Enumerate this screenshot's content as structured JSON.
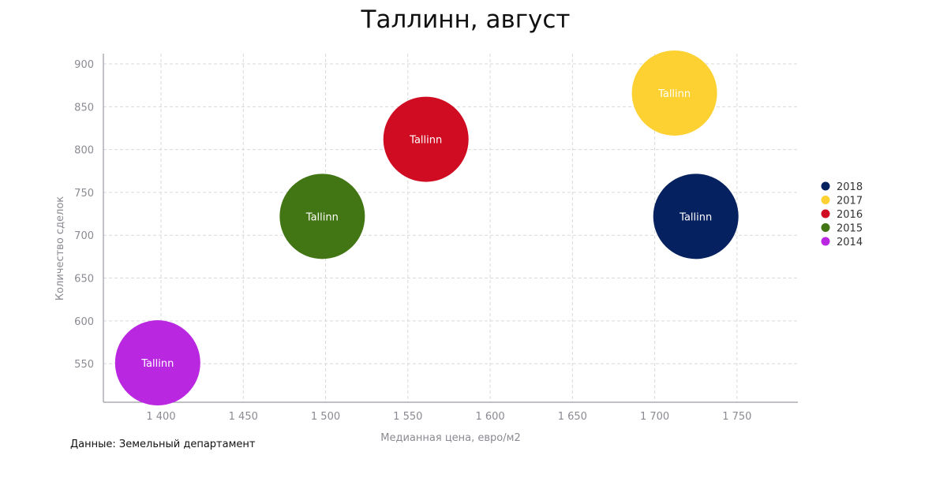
{
  "chart_data": {
    "type": "bubble",
    "title": "Таллинн, август",
    "xlabel": "Медианная цена, евро/м2",
    "ylabel": "Количество сделок",
    "xlim": [
      1365,
      1787
    ],
    "ylim": [
      505,
      912
    ],
    "x_ticks": [
      1400,
      1450,
      1500,
      1550,
      1600,
      1650,
      1700,
      1750
    ],
    "x_tick_labels": [
      "1 400",
      "1 450",
      "1 500",
      "1 550",
      "1 600",
      "1 650",
      "1 700",
      "1 750"
    ],
    "y_ticks": [
      550,
      600,
      650,
      700,
      750,
      800,
      850,
      900
    ],
    "y_tick_labels": [
      "550",
      "600",
      "650",
      "700",
      "750",
      "800",
      "850",
      "900"
    ],
    "grid": true,
    "legend_position": "right",
    "series": [
      {
        "name": "2018",
        "color": "#06215f",
        "label": "Tallinn",
        "x": 1725,
        "y": 722
      },
      {
        "name": "2017",
        "color": "#fdd131",
        "label": "Tallinn",
        "x": 1712,
        "y": 866
      },
      {
        "name": "2016",
        "color": "#cf0c22",
        "label": "Tallinn",
        "x": 1561,
        "y": 812
      },
      {
        "name": "2015",
        "color": "#427514",
        "label": "Tallinn",
        "x": 1498,
        "y": 722
      },
      {
        "name": "2014",
        "color": "#ba27e0",
        "label": "Tallinn",
        "x": 1398,
        "y": 551
      }
    ]
  },
  "source_text": "Данные: Земельный департамент"
}
